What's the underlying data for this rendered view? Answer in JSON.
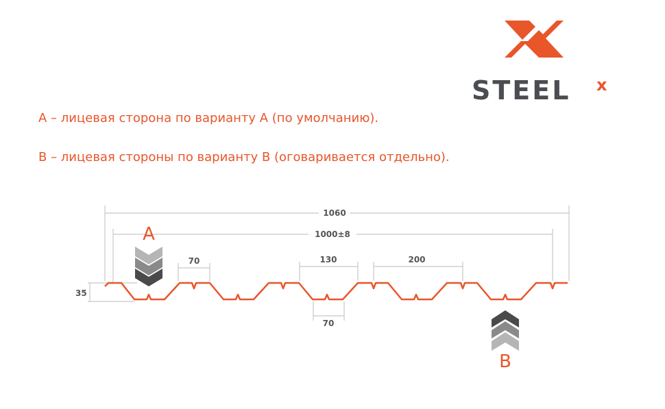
{
  "logo": {
    "text": "STEELX",
    "accent_color": "#e8562a",
    "text_color": "#4a4d52"
  },
  "legend": {
    "line_a": "А – лицевая сторона по варианту А (по умолчанию).",
    "line_b": "В – лицевая стороны по варианту В (оговаривается отдельно)."
  },
  "diagram": {
    "profile_color": "#e8562a",
    "dimensions": {
      "total_width": "1060",
      "useful_width": "1000±8",
      "top_shelf": "70",
      "top_opening": "130",
      "pitch": "200",
      "bottom_shelf": "70",
      "height": "35"
    },
    "side_a_label": "A",
    "side_b_label": "B"
  }
}
